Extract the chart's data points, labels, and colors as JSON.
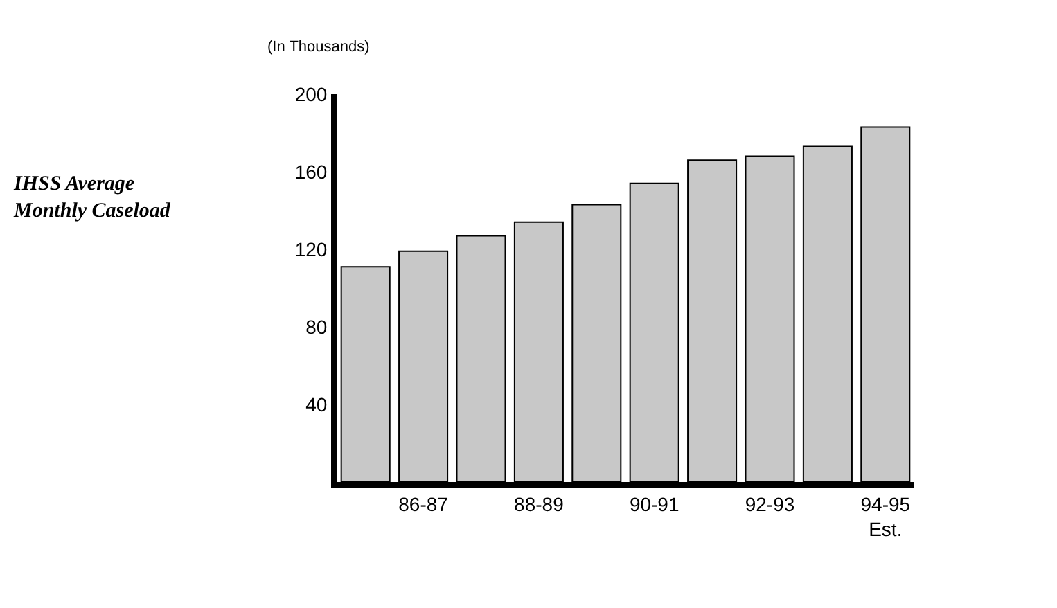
{
  "chart_data": {
    "type": "bar",
    "title": "IHSS Average\nMonthly Caseload",
    "ylabel": "(In Thousands)",
    "categories": [
      null,
      "86-87",
      null,
      "88-89",
      null,
      "90-91",
      null,
      "92-93",
      null,
      "94-95\nEst."
    ],
    "values": [
      111,
      119,
      127,
      134,
      143,
      154,
      166,
      168,
      173,
      183
    ],
    "color": "#c8c8c8",
    "ylim": [
      0,
      200
    ],
    "yticks": [
      40,
      80,
      120,
      160,
      200
    ],
    "grid": false
  }
}
